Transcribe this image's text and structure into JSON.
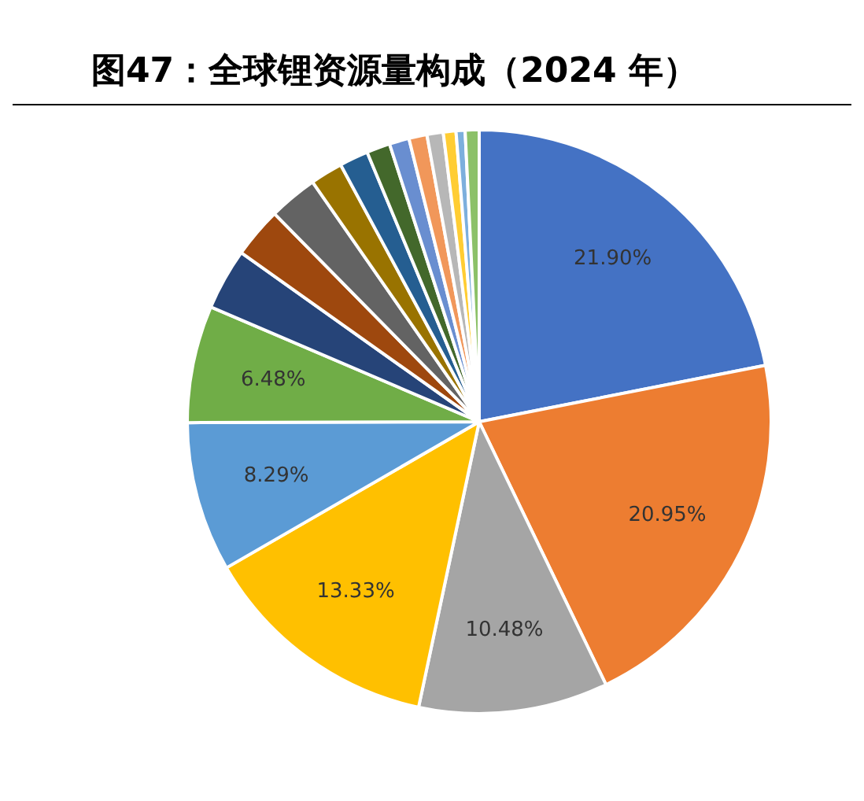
{
  "chart_data": {
    "type": "pie",
    "title": "图47：全球锂资源量构成（2024 年）",
    "categories": [
      null,
      null,
      null,
      null,
      null,
      null,
      null,
      null,
      null,
      null,
      null,
      null,
      null,
      null,
      null,
      null,
      null,
      null
    ],
    "values": [
      21.9,
      20.95,
      10.48,
      13.33,
      8.29,
      6.48,
      3.4,
      2.8,
      2.7,
      1.8,
      1.6,
      1.3,
      1.1,
      1.0,
      0.9,
      0.7,
      0.5,
      0.77
    ],
    "colors": [
      "#4472c4",
      "#ed7d31",
      "#a5a5a5",
      "#ffc000",
      "#5b9bd5",
      "#70ad47",
      "#264478",
      "#9e480e",
      "#636363",
      "#997300",
      "#255e91",
      "#43682b",
      "#698ed0",
      "#f1975a",
      "#b7b7b7",
      "#ffcd33",
      "#7cafdd",
      "#8cc168"
    ],
    "value_labels": [
      "21.90%",
      "20.95%",
      "10.48%",
      "13.33%",
      "8.29%",
      "6.48%",
      null,
      null,
      null,
      null,
      null,
      null,
      null,
      null,
      null,
      null,
      null,
      null
    ],
    "legend": false
  }
}
